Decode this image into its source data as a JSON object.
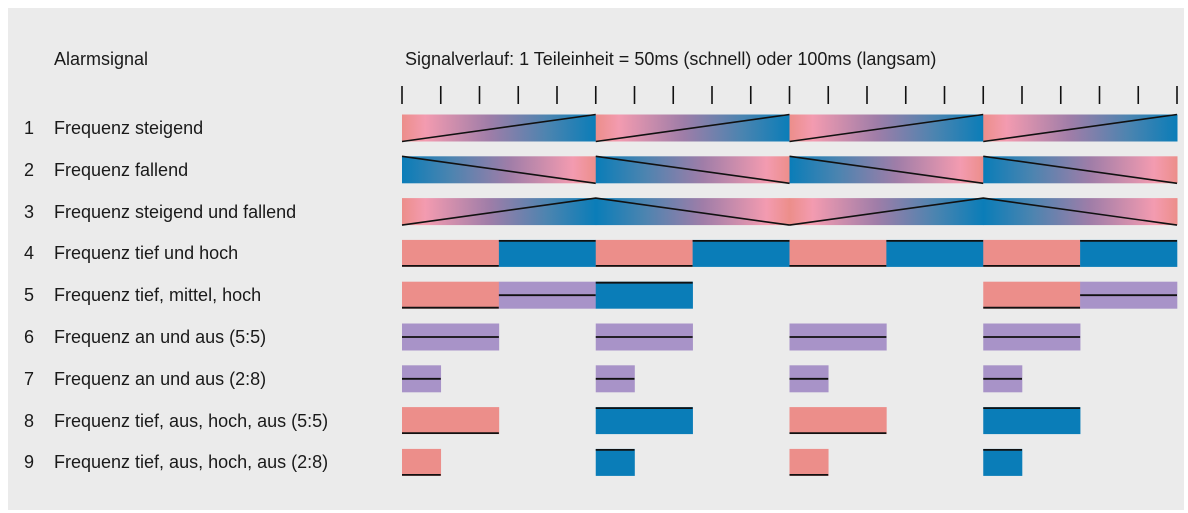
{
  "header": {
    "title": "Alarmsignal",
    "signal_description": "Signalverlauf: 1 Teileinheit = 50ms (schnell) oder 100ms (langsam)"
  },
  "diagram": {
    "ticks_per_period": 5,
    "period_count": 4,
    "total_ticks": 20
  },
  "colors": {
    "low": "#ec8e8a",
    "high": "#0a7db8",
    "mid": "#a893c8",
    "pink_light": "#f39bb0",
    "line": "#111111",
    "panel": "#ebebeb"
  },
  "rows": [
    {
      "number": "1",
      "label": "Frequenz steigend",
      "type": "sweep-up"
    },
    {
      "number": "2",
      "label": "Frequenz fallend",
      "type": "sweep-down"
    },
    {
      "number": "3",
      "label": "Frequenz steigend und fallend",
      "type": "sweep-updown"
    },
    {
      "number": "4",
      "label": "Frequenz tief und hoch",
      "type": "blocks",
      "pattern": [
        {
          "f": "low",
          "d": 2.5
        },
        {
          "f": "high",
          "d": 2.5
        }
      ]
    },
    {
      "number": "5",
      "label": "Frequenz tief, mittel, hoch",
      "type": "blocks",
      "pattern_span": 15,
      "pattern": [
        {
          "f": "low",
          "d": 2.5
        },
        {
          "f": "mid",
          "d": 2.5
        },
        {
          "f": "high",
          "d": 2.5
        }
      ]
    },
    {
      "number": "6",
      "label": "Frequenz an und aus (5:5)",
      "type": "blocks",
      "pattern": [
        {
          "f": "mid",
          "d": 2.5
        },
        {
          "f": "off",
          "d": 2.5
        }
      ]
    },
    {
      "number": "7",
      "label": "Frequenz an und aus (2:8)",
      "type": "blocks",
      "pattern": [
        {
          "f": "mid",
          "d": 1
        },
        {
          "f": "off",
          "d": 4
        }
      ]
    },
    {
      "number": "8",
      "label": "Frequenz tief, aus, hoch, aus (5:5)",
      "type": "blocks",
      "pattern_span": 10,
      "pattern": [
        {
          "f": "low",
          "d": 2.5
        },
        {
          "f": "off",
          "d": 2.5
        },
        {
          "f": "high",
          "d": 2.5
        },
        {
          "f": "off",
          "d": 2.5
        }
      ]
    },
    {
      "number": "9",
      "label": "Frequenz tief, aus, hoch, aus (2:8)",
      "type": "blocks",
      "pattern_span": 10,
      "pattern": [
        {
          "f": "low",
          "d": 1
        },
        {
          "f": "off",
          "d": 4
        },
        {
          "f": "high",
          "d": 1
        },
        {
          "f": "off",
          "d": 4
        }
      ]
    }
  ]
}
